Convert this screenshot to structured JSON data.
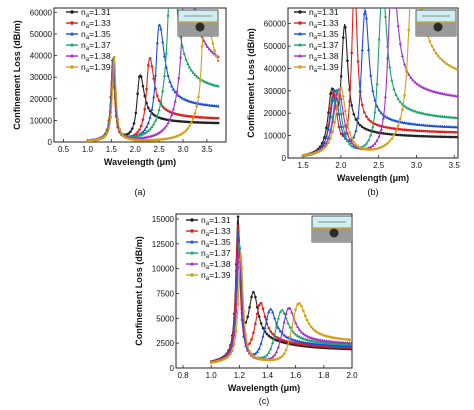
{
  "figure": {
    "colors": {
      "1.31": "#222222",
      "1.33": "#e02020",
      "1.35": "#1a4fd8",
      "1.37": "#1aa36b",
      "1.38": "#a030c8",
      "1.39": "#d4a017"
    },
    "legend_prefix": "n",
    "legend_sub": "a"
  },
  "chart_data": [
    {
      "type": "line",
      "panel_label": "(a)",
      "xlabel": "Wavelength (μm)",
      "ylabel": "Confinement Loss (dB/m)",
      "xlim": [
        0.3,
        3.9
      ],
      "ylim": [
        0,
        62000
      ],
      "xticks": [
        0.5,
        1.0,
        1.5,
        2.0,
        2.5,
        3.0,
        3.5
      ],
      "xtick_labels": [
        "0.5",
        "1.0",
        "1.5",
        "2.0",
        "2.5",
        "3.0",
        "3.5"
      ],
      "yticks": [
        0,
        10000,
        20000,
        30000,
        40000,
        50000,
        60000
      ],
      "ytick_labels": [
        "0",
        "10000",
        "20000",
        "30000",
        "40000",
        "50000",
        "60000"
      ],
      "x_range": [
        1.0,
        3.75
      ],
      "series": [
        {
          "name": "1.31",
          "base_peak": {
            "x": 1.53,
            "y": 37000,
            "w": 0.045
          },
          "peak": {
            "x": 2.1,
            "y": 21000,
            "w": 0.1
          },
          "tail": 8500
        },
        {
          "name": "1.33",
          "base_peak": {
            "x": 1.53,
            "y": 37000,
            "w": 0.045
          },
          "peak": {
            "x": 2.3,
            "y": 26500,
            "w": 0.11
          },
          "tail": 10500
        },
        {
          "name": "1.35",
          "base_peak": {
            "x": 1.54,
            "y": 37500,
            "w": 0.045
          },
          "peak": {
            "x": 2.5,
            "y": 36000,
            "w": 0.13
          },
          "tail": 15500
        },
        {
          "name": "1.37",
          "base_peak": {
            "x": 1.54,
            "y": 38000,
            "w": 0.045
          },
          "peak": {
            "x": 2.75,
            "y": 58000,
            "w": 0.15
          },
          "tail": 23000
        },
        {
          "name": "1.38",
          "base_peak": {
            "x": 1.55,
            "y": 38000,
            "w": 0.045
          },
          "peak": {
            "x": 3.05,
            "y": 50000,
            "w": 0.17
          },
          "tail": 33000
        },
        {
          "name": "1.39",
          "base_peak": {
            "x": 1.56,
            "y": 38500,
            "w": 0.045
          },
          "peak": {
            "x": 3.45,
            "y": 31000,
            "w": 0.18
          },
          "tail": 24000
        }
      ]
    },
    {
      "type": "line",
      "panel_label": "(b)",
      "xlabel": "Wavelength (μm)",
      "ylabel": "Confinement Loss (dB/m)",
      "xlim": [
        1.3,
        3.55
      ],
      "ylim": [
        0,
        67000
      ],
      "xticks": [
        1.5,
        2.0,
        2.5,
        3.0,
        3.5
      ],
      "xtick_labels": [
        "1.5",
        "2.0",
        "2.5",
        "3.0",
        "3.5"
      ],
      "yticks": [
        0,
        10000,
        20000,
        30000,
        40000,
        50000,
        60000
      ],
      "ytick_labels": [
        "0",
        "10000",
        "20000",
        "30000",
        "40000",
        "50000",
        "60000"
      ],
      "x_range": [
        1.5,
        3.55
      ],
      "series": [
        {
          "name": "1.31",
          "base_peak": {
            "x": 1.88,
            "y": 27000,
            "w": 0.06
          },
          "peak": {
            "x": 2.05,
            "y": 47000,
            "w": 0.05
          },
          "tail": 9000
        },
        {
          "name": "1.33",
          "base_peak": {
            "x": 1.9,
            "y": 28000,
            "w": 0.06
          },
          "peak": {
            "x": 2.18,
            "y": 68000,
            "w": 0.04
          },
          "tail": 11000
        },
        {
          "name": "1.35",
          "base_peak": {
            "x": 1.92,
            "y": 28500,
            "w": 0.07
          },
          "peak": {
            "x": 2.32,
            "y": 51000,
            "w": 0.06
          },
          "tail": 13000
        },
        {
          "name": "1.37",
          "base_peak": {
            "x": 1.95,
            "y": 29000,
            "w": 0.07
          },
          "peak": {
            "x": 2.55,
            "y": 57000,
            "w": 0.07
          },
          "tail": 16500
        },
        {
          "name": "1.38",
          "base_peak": {
            "x": 1.97,
            "y": 29500,
            "w": 0.08
          },
          "peak": {
            "x": 2.68,
            "y": 53000,
            "w": 0.08
          },
          "tail": 25000
        },
        {
          "name": "1.39",
          "base_peak": {
            "x": 2.0,
            "y": 30000,
            "w": 0.08
          },
          "peak": {
            "x": 2.95,
            "y": 42000,
            "w": 0.14
          },
          "tail": 33000
        }
      ]
    },
    {
      "type": "line",
      "panel_label": "(c)",
      "xlabel": "Wavelength (μm)",
      "ylabel": "Confinement Loss (dB/m)",
      "xlim": [
        0.75,
        2.0
      ],
      "ylim": [
        0,
        15500
      ],
      "xticks": [
        0.8,
        1.0,
        1.2,
        1.4,
        1.6,
        1.8,
        2.0
      ],
      "xtick_labels": [
        "0.8",
        "1.0",
        "1.2",
        "1.4",
        "1.6",
        "1.8",
        "2.0"
      ],
      "yticks": [
        0,
        2500,
        5000,
        7500,
        10000,
        12500,
        15000
      ],
      "ytick_labels": [
        "0",
        "2500",
        "5000",
        "7500",
        "10000",
        "12500",
        "15000"
      ],
      "x_range": [
        1.0,
        2.0
      ],
      "series": [
        {
          "name": "1.31",
          "base_peak": {
            "x": 1.19,
            "y": 14000,
            "w": 0.018
          },
          "peak": {
            "x": 1.3,
            "y": 4800,
            "w": 0.04
          },
          "tail": 1700
        },
        {
          "name": "1.33",
          "base_peak": {
            "x": 1.19,
            "y": 13500,
            "w": 0.018
          },
          "peak": {
            "x": 1.35,
            "y": 3800,
            "w": 0.04
          },
          "tail": 1800
        },
        {
          "name": "1.35",
          "base_peak": {
            "x": 1.195,
            "y": 13000,
            "w": 0.018
          },
          "peak": {
            "x": 1.42,
            "y": 3200,
            "w": 0.045
          },
          "tail": 1900
        },
        {
          "name": "1.37",
          "base_peak": {
            "x": 1.2,
            "y": 12000,
            "w": 0.02
          },
          "peak": {
            "x": 1.5,
            "y": 3100,
            "w": 0.05
          },
          "tail": 2000
        },
        {
          "name": "1.38",
          "base_peak": {
            "x": 1.2,
            "y": 11500,
            "w": 0.02
          },
          "peak": {
            "x": 1.55,
            "y": 3300,
            "w": 0.05
          },
          "tail": 2100
        },
        {
          "name": "1.39",
          "base_peak": {
            "x": 1.21,
            "y": 11000,
            "w": 0.02
          },
          "peak": {
            "x": 1.62,
            "y": 3600,
            "w": 0.06
          },
          "tail": 2300
        }
      ]
    }
  ]
}
